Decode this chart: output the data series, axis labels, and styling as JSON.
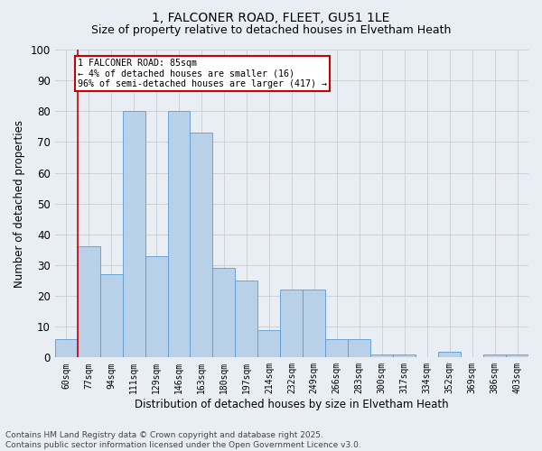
{
  "title_line1": "1, FALCONER ROAD, FLEET, GU51 1LE",
  "title_line2": "Size of property relative to detached houses in Elvetham Heath",
  "xlabel": "Distribution of detached houses by size in Elvetham Heath",
  "ylabel": "Number of detached properties",
  "categories": [
    "60sqm",
    "77sqm",
    "94sqm",
    "111sqm",
    "129sqm",
    "146sqm",
    "163sqm",
    "180sqm",
    "197sqm",
    "214sqm",
    "232sqm",
    "249sqm",
    "266sqm",
    "283sqm",
    "300sqm",
    "317sqm",
    "334sqm",
    "352sqm",
    "369sqm",
    "386sqm",
    "403sqm"
  ],
  "values": [
    6,
    36,
    27,
    80,
    33,
    80,
    73,
    29,
    25,
    9,
    22,
    22,
    6,
    6,
    1,
    1,
    0,
    2,
    0,
    1,
    1
  ],
  "bar_color": "#b8d0e8",
  "bar_edge_color": "#5b9bd5",
  "grid_color": "#cccccc",
  "bg_color": "#e8eef4",
  "vline_x_index": 1,
  "vline_color": "#cc0000",
  "annotation_text": "1 FALCONER ROAD: 85sqm\n← 4% of detached houses are smaller (16)\n96% of semi-detached houses are larger (417) →",
  "annotation_box_color": "#ffffff",
  "annotation_box_edge": "#cc0000",
  "ylim": [
    0,
    100
  ],
  "yticks": [
    0,
    10,
    20,
    30,
    40,
    50,
    60,
    70,
    80,
    90,
    100
  ],
  "footer": "Contains HM Land Registry data © Crown copyright and database right 2025.\nContains public sector information licensed under the Open Government Licence v3.0.",
  "footer_fontsize": 6.5,
  "title_fontsize1": 10,
  "title_fontsize2": 9
}
